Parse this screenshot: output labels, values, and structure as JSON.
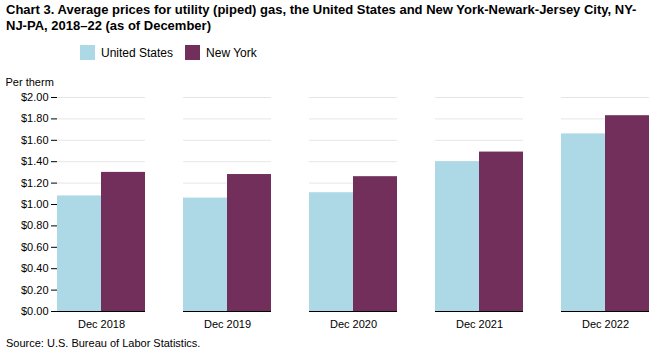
{
  "chart_data": {
    "type": "bar",
    "title": "Chart 3. Average prices for utility (piped) gas, the United States and New York-Newark-Jersey City, NY-NJ-PA, 2018–22 (as of December)",
    "ylabel": "Per therm",
    "source": "Source: U.S. Bureau of Labor Statistics.",
    "categories": [
      "Dec 2018",
      "Dec 2019",
      "Dec 2020",
      "Dec 2021",
      "Dec 2022"
    ],
    "series": [
      {
        "name": "United States",
        "color": "#add8e6",
        "values": [
          1.08,
          1.06,
          1.11,
          1.4,
          1.66
        ]
      },
      {
        "name": "New York",
        "color": "#722F5B",
        "values": [
          1.3,
          1.28,
          1.26,
          1.49,
          1.83
        ]
      }
    ],
    "ylim": [
      0.0,
      2.0
    ],
    "yticks": [
      {
        "value": 0.0,
        "label": "$0.00"
      },
      {
        "value": 0.2,
        "label": "$0.20"
      },
      {
        "value": 0.4,
        "label": "$0.40"
      },
      {
        "value": 0.6,
        "label": "$0.60"
      },
      {
        "value": 0.8,
        "label": "$0.80"
      },
      {
        "value": 1.0,
        "label": "$1.00"
      },
      {
        "value": 1.2,
        "label": "$1.20"
      },
      {
        "value": 1.4,
        "label": "$1.40"
      },
      {
        "value": 1.6,
        "label": "$1.60"
      },
      {
        "value": 1.8,
        "label": "$1.80"
      },
      {
        "value": 2.0,
        "label": "$2.00"
      }
    ],
    "grid": true,
    "legend": "top"
  }
}
